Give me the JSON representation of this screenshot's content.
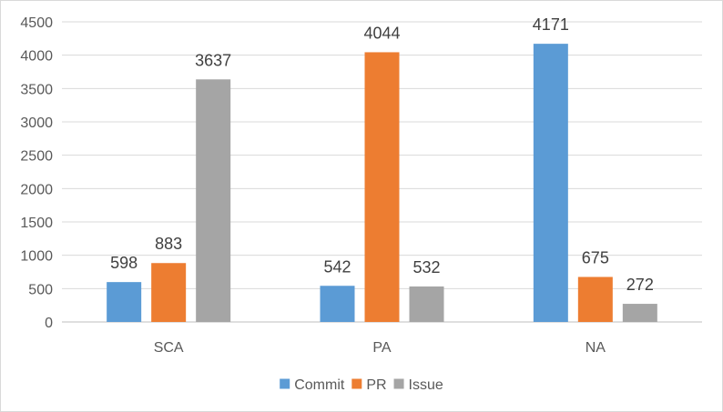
{
  "chart_data": {
    "type": "bar",
    "categories": [
      "SCA",
      "PA",
      "NA"
    ],
    "series": [
      {
        "name": "Commit",
        "color": "#5b9bd5",
        "values": [
          598,
          542,
          4171
        ]
      },
      {
        "name": "PR",
        "color": "#ed7d31",
        "values": [
          883,
          4044,
          675
        ]
      },
      {
        "name": "Issue",
        "color": "#a5a5a5",
        "values": [
          3637,
          532,
          272
        ]
      }
    ],
    "yticks": [
      "0",
      "500",
      "1000",
      "1500",
      "2000",
      "2500",
      "3000",
      "3500",
      "4000",
      "4500"
    ],
    "ylim": [
      0,
      4500
    ],
    "grid": true,
    "legend_position": "bottom"
  }
}
